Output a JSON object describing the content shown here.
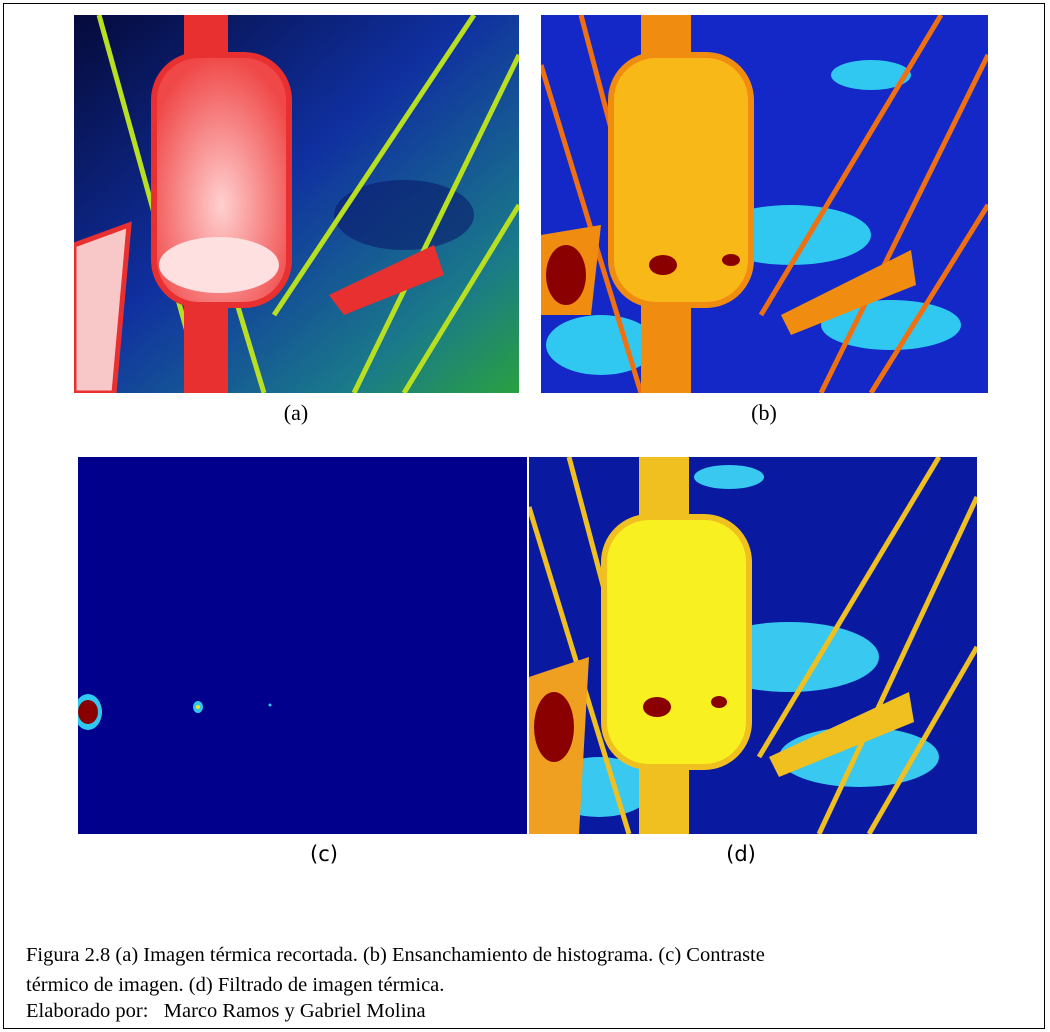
{
  "figures": [
    {
      "label": "(a)"
    },
    {
      "label": "(b)"
    },
    {
      "label": "(c)"
    },
    {
      "label": "(d)"
    }
  ],
  "caption": "Figura 2.8 (a) Imagen térmica recortada. (b) Ensanchamiento de histograma. (c) Contraste térmico de imagen. (d) Filtrado de imagen térmica.",
  "credit": "Elaborado por:   Marco Ramos y Gabriel Molina"
}
